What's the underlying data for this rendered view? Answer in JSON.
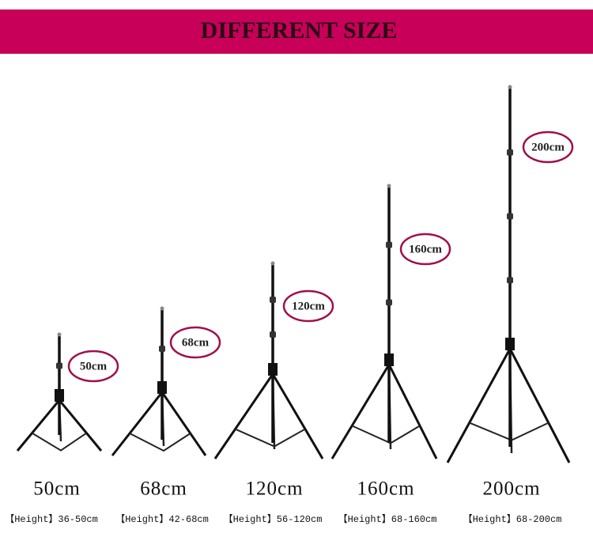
{
  "header": {
    "title": "DIFFERENT SIZE"
  },
  "items": [
    {
      "badge": "50cm",
      "size": "50cm",
      "range": "【Height】36-50cm"
    },
    {
      "badge": "68cm",
      "size": "68cm",
      "range": "【Height】42-68cm"
    },
    {
      "badge": "120cm",
      "size": "120cm",
      "range": "【Height】56-120cm"
    },
    {
      "badge": "160cm",
      "size": "160cm",
      "range": "【Height】68-160cm"
    },
    {
      "badge": "200cm",
      "size": "200cm",
      "range": "【Height】68-200cm"
    }
  ]
}
